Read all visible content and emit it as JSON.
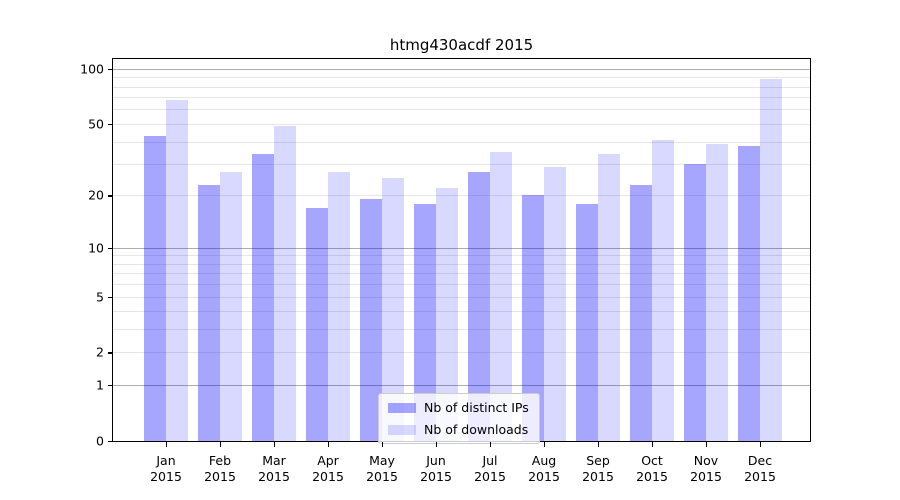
{
  "title": "htmg430acdf 2015",
  "chart_data": {
    "type": "bar",
    "title": "htmg430acdf 2015",
    "categories": [
      "Jan",
      "Feb",
      "Mar",
      "Apr",
      "May",
      "Jun",
      "Jul",
      "Aug",
      "Sep",
      "Oct",
      "Nov",
      "Dec"
    ],
    "x_year": "2015",
    "series": [
      {
        "name": "Nb of distinct IPs",
        "color": "#a6a6ff",
        "css_color": "rgba(0,0,255,0.35)",
        "values": [
          43,
          23,
          34,
          17,
          19,
          18,
          27,
          20,
          18,
          23,
          30,
          38
        ]
      },
      {
        "name": "Nb of downloads",
        "color": "#d9d9ff",
        "css_color": "rgba(0,0,255,0.15)",
        "values": [
          68,
          27,
          49,
          27,
          25,
          22,
          35,
          29,
          34,
          41,
          39,
          88
        ]
      }
    ],
    "yscale": "log1p",
    "ylim": [
      0,
      113
    ],
    "yticks": [
      0,
      1,
      2,
      5,
      10,
      20,
      50,
      100
    ],
    "grid_major_values": [
      1,
      10,
      100
    ],
    "grid_minor_values": [
      2,
      3,
      4,
      5,
      6,
      7,
      8,
      9,
      20,
      30,
      40,
      50,
      60,
      70,
      80,
      90
    ],
    "grid": true,
    "legend_position": "bottom-center",
    "grid_major_color": "#adadad",
    "grid_minor_color": "#e6e6e6"
  }
}
